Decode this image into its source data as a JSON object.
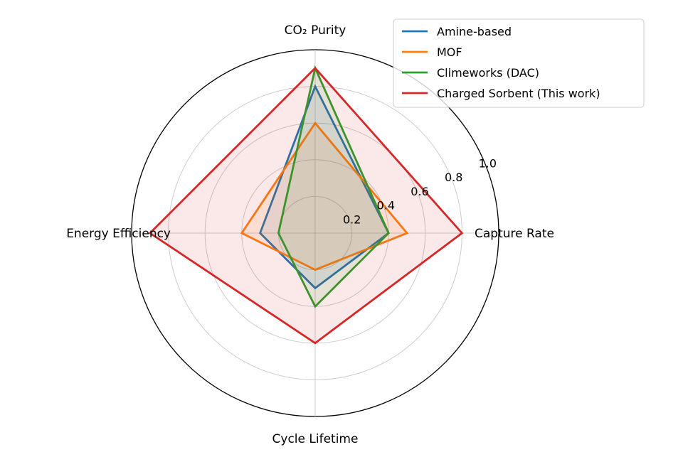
{
  "chart_data": {
    "type": "radar",
    "axes": [
      "CO₂ Purity",
      "Capture Rate",
      "Cycle Lifetime",
      "Energy Efficiency"
    ],
    "rlim": [
      0,
      1.0
    ],
    "rticks": [
      0.2,
      0.4,
      0.6,
      0.8,
      1.0
    ],
    "rtick_labels": [
      "0.2",
      "0.4",
      "0.6",
      "0.8",
      "1.0"
    ],
    "grid": true,
    "legend_position": "top-right",
    "series": [
      {
        "name": "Amine-based",
        "color": "#1f77b4",
        "values": [
          0.8,
          0.4,
          0.3,
          0.3
        ]
      },
      {
        "name": "MOF",
        "color": "#ff7f0e",
        "values": [
          0.6,
          0.5,
          0.2,
          0.4
        ]
      },
      {
        "name": "Climeworks (DAC)",
        "color": "#2ca02c",
        "values": [
          0.9,
          0.4,
          0.4,
          0.2
        ]
      },
      {
        "name": "Charged Sorbent (This work)",
        "color": "#d62728",
        "values": [
          0.9,
          0.8,
          0.6,
          0.9
        ]
      }
    ]
  }
}
